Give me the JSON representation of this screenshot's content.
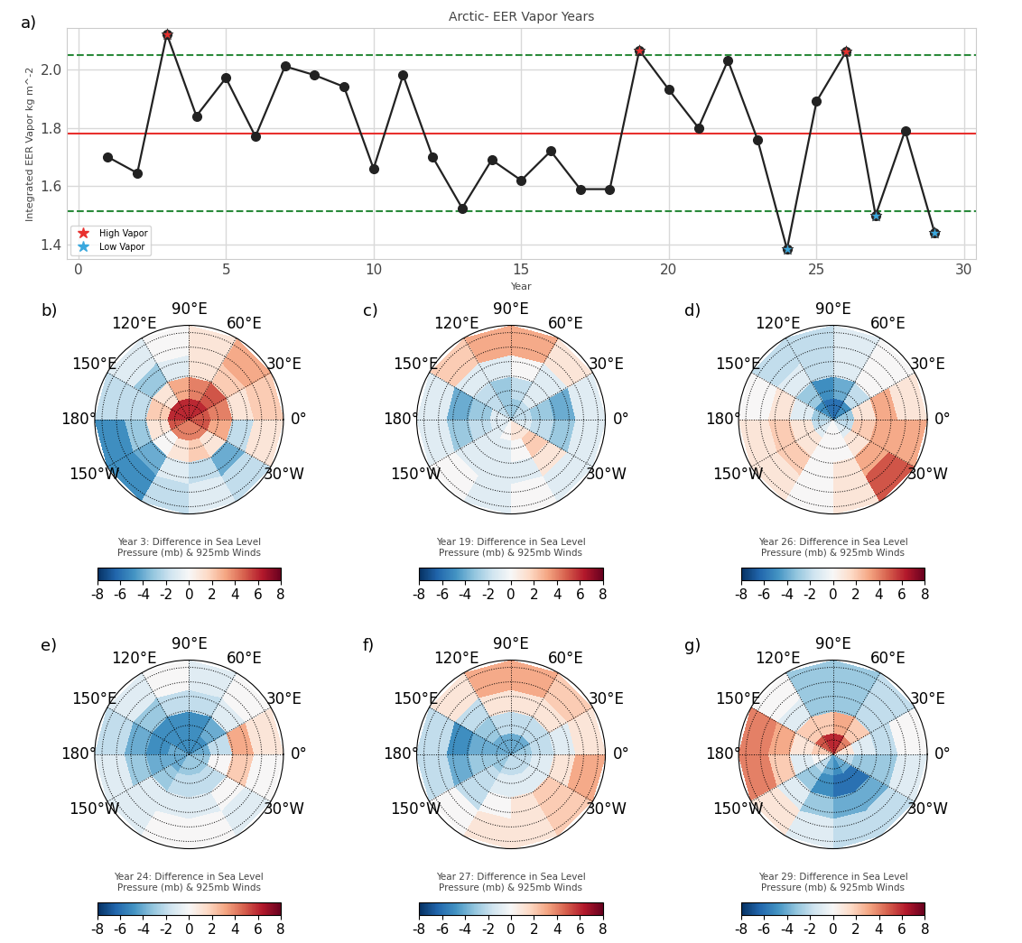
{
  "chart_data": [
    {
      "type": "line",
      "panel_label": "a)",
      "title": "Arctic- EER Vapor Years",
      "x_label": "Year",
      "y_label": "Integrated EER Vapor kg m^-2",
      "x": [
        1,
        2,
        3,
        4,
        5,
        6,
        7,
        8,
        9,
        10,
        11,
        12,
        13,
        14,
        15,
        16,
        17,
        18,
        19,
        20,
        21,
        22,
        23,
        24,
        25,
        26,
        27,
        28,
        29
      ],
      "series": [
        {
          "type": "line",
          "color": "#222222",
          "marker": "circle",
          "line_style": "solid",
          "x": [
            1,
            2,
            3,
            4,
            5,
            6,
            7,
            8,
            9,
            10,
            11,
            12,
            13,
            14,
            15,
            16,
            17,
            18,
            19,
            20,
            21,
            22,
            23,
            24,
            25,
            26,
            27,
            28,
            29
          ],
          "values": [
            1.7,
            1.645,
            2.12,
            1.84,
            1.97,
            1.77,
            2.01,
            1.98,
            1.94,
            1.66,
            1.98,
            1.7,
            1.525,
            1.69,
            1.62,
            1.72,
            1.59,
            1.59,
            2.065,
            1.93,
            1.8,
            2.03,
            1.76,
            1.385,
            1.89,
            2.06,
            1.5,
            1.79,
            1.44
          ]
        },
        {
          "type": "scatter",
          "name": "High Vapor",
          "color": "#e8302e",
          "marker": "star",
          "x": [
            3,
            19,
            26
          ],
          "values": [
            2.12,
            2.065,
            2.06
          ]
        },
        {
          "type": "scatter",
          "name": "Low Vapor",
          "color": "#3aa8de",
          "marker": "star",
          "x": [
            24,
            27,
            29
          ],
          "values": [
            1.385,
            1.5,
            1.44
          ]
        }
      ],
      "reference_lines": [
        {
          "value": 1.78,
          "color": "#e8302e",
          "line_style": "solid"
        },
        {
          "value": 2.05,
          "color": "#2a8a3a",
          "line_style": "dashed"
        },
        {
          "value": 1.515,
          "color": "#2a8a3a",
          "line_style": "dashed"
        }
      ],
      "xlim": [
        -0.4,
        30.4
      ],
      "xticks": [
        0,
        5,
        10,
        15,
        20,
        25,
        30
      ],
      "ylim": [
        1.35,
        2.14
      ],
      "yticks": [
        1.4,
        1.6,
        1.8,
        2.0
      ],
      "grid": true,
      "legend": "lower left"
    },
    {
      "type": "polar_heatmap",
      "panel_label": "b)",
      "title": "Year 3: Difference in Sea Level\nPressure (mb) & 925mb Winds",
      "lon_edges": [
        0,
        30,
        60,
        90,
        120,
        150,
        180,
        210,
        240,
        270,
        300,
        330,
        360
      ],
      "lat_edges": [
        90,
        75,
        60,
        45,
        25
      ],
      "lat_ticks": [
        80,
        70,
        60,
        50,
        40,
        30
      ],
      "xticks": [
        {
          "value": 120,
          "label": "120°E"
        },
        {
          "value": 90,
          "label": "90°E"
        },
        {
          "value": 60,
          "label": "60°E"
        },
        {
          "value": 150,
          "label": "150°E"
        },
        {
          "value": 30,
          "label": "30°E"
        },
        {
          "value": 180,
          "label": "180°"
        },
        {
          "value": 0,
          "label": "0°"
        },
        {
          "value": 210,
          "label": "150°W"
        },
        {
          "value": 330,
          "label": "30°W"
        }
      ],
      "tick_labels": "x",
      "cells": [
        [
          5,
          6,
          6,
          6,
          6,
          6,
          5,
          4,
          4,
          4,
          4,
          5
        ],
        [
          4,
          5,
          4,
          3,
          1,
          2,
          1,
          0,
          1,
          2,
          1,
          3
        ],
        [
          1,
          2,
          1,
          -1,
          -3,
          -2,
          -3,
          -4,
          -1,
          -2,
          -4,
          -2
        ],
        [
          2,
          3,
          1,
          0,
          -1,
          -2,
          -5,
          -5,
          -2,
          -1,
          -2,
          1
        ]
      ],
      "colorbar": {
        "range": [
          -8,
          8
        ],
        "ticks": [
          -8,
          -6,
          -4,
          -2,
          0,
          2,
          4,
          6,
          8
        ]
      }
    },
    {
      "type": "polar_heatmap",
      "panel_label": "c)",
      "title": "Year 19: Difference in Sea Level\nPressure (mb) & 925mb Winds",
      "lon_edges": [
        0,
        30,
        60,
        90,
        120,
        150,
        180,
        210,
        240,
        270,
        300,
        330,
        360
      ],
      "lat_edges": [
        90,
        75,
        60,
        45,
        25
      ],
      "lat_ticks": [
        80,
        70,
        60,
        50,
        40,
        30
      ],
      "xticks": [
        {
          "value": 120,
          "label": "120°E"
        },
        {
          "value": 90,
          "label": "90°E"
        },
        {
          "value": 60,
          "label": "60°E"
        },
        {
          "value": 150,
          "label": "150°E"
        },
        {
          "value": 30,
          "label": "30°E"
        },
        {
          "value": 180,
          "label": "180°"
        },
        {
          "value": 0,
          "label": "0°"
        },
        {
          "value": 210,
          "label": "150°W"
        },
        {
          "value": 330,
          "label": "30°W"
        }
      ],
      "tick_labels": "x",
      "cells": [
        [
          -2,
          -2,
          -3,
          -3,
          -2,
          -1,
          -1,
          -1,
          0,
          1,
          1,
          -1
        ],
        [
          -3,
          -1,
          -2,
          -3,
          -2,
          -3,
          -2,
          -1,
          -1,
          0,
          2,
          -2
        ],
        [
          -4,
          -1,
          0,
          -1,
          -1,
          -4,
          -3,
          -1,
          -1,
          -1,
          1,
          -3
        ],
        [
          -1,
          1,
          3,
          3,
          2,
          -1,
          -1,
          0,
          -1,
          0,
          -1,
          -1
        ]
      ],
      "colorbar": {
        "range": [
          -8,
          8
        ],
        "ticks": [
          -8,
          -6,
          -4,
          -2,
          0,
          2,
          4,
          6,
          8
        ]
      }
    },
    {
      "type": "polar_heatmap",
      "panel_label": "d)",
      "title": "Year 26: Difference in Sea Level\nPressure (mb) & 925mb Winds",
      "lon_edges": [
        0,
        30,
        60,
        90,
        120,
        150,
        180,
        210,
        240,
        270,
        300,
        330,
        360
      ],
      "lat_edges": [
        90,
        75,
        60,
        45,
        25
      ],
      "lat_ticks": [
        80,
        70,
        60,
        50,
        40,
        30
      ],
      "xticks": [
        {
          "value": 120,
          "label": "120°E"
        },
        {
          "value": 90,
          "label": "90°E"
        },
        {
          "value": 60,
          "label": "60°E"
        },
        {
          "value": 150,
          "label": "150°E"
        },
        {
          "value": 30,
          "label": "30°E"
        },
        {
          "value": 180,
          "label": "180°"
        },
        {
          "value": 0,
          "label": "0°"
        },
        {
          "value": 210,
          "label": "150°W"
        },
        {
          "value": 330,
          "label": "30°W"
        }
      ],
      "tick_labels": "x",
      "cells": [
        [
          -3,
          -5,
          -6,
          -6,
          -5,
          -3,
          -2,
          -1,
          0,
          0,
          -1,
          -2
        ],
        [
          1,
          -2,
          -4,
          -5,
          -3,
          -1,
          1,
          1,
          0,
          0,
          1,
          2
        ],
        [
          3,
          0,
          -1,
          -2,
          -1,
          1,
          2,
          2,
          0,
          1,
          3,
          3
        ],
        [
          1,
          0,
          -1,
          -2,
          -2,
          0,
          1,
          1,
          0,
          1,
          5,
          3
        ]
      ],
      "colorbar": {
        "range": [
          -8,
          8
        ],
        "ticks": [
          -8,
          -6,
          -4,
          -2,
          0,
          2,
          4,
          6,
          8
        ]
      }
    },
    {
      "type": "polar_heatmap",
      "panel_label": "e)",
      "title": "Year 24: Difference in Sea Level\nPressure (mb) & 925mb Winds",
      "lon_edges": [
        0,
        30,
        60,
        90,
        120,
        150,
        180,
        210,
        240,
        270,
        300,
        330,
        360
      ],
      "lat_edges": [
        90,
        75,
        60,
        45,
        25
      ],
      "lat_ticks": [
        80,
        70,
        60,
        50,
        40,
        30
      ],
      "xticks": [
        {
          "value": 120,
          "label": "120°E"
        },
        {
          "value": 90,
          "label": "90°E"
        },
        {
          "value": 60,
          "label": "60°E"
        },
        {
          "value": 150,
          "label": "150°E"
        },
        {
          "value": 30,
          "label": "30°E"
        },
        {
          "value": 180,
          "label": "180°"
        },
        {
          "value": 0,
          "label": "0°"
        },
        {
          "value": 210,
          "label": "150°W"
        },
        {
          "value": 330,
          "label": "30°W"
        }
      ],
      "tick_labels": "x",
      "cells": [
        [
          -4,
          -5,
          -5,
          -5,
          -5,
          -4,
          -4,
          -4,
          -3,
          -3,
          -3,
          -3
        ],
        [
          -2,
          -4,
          -5,
          -5,
          -5,
          -5,
          -4,
          -3,
          -2,
          -2,
          -2,
          0
        ],
        [
          3,
          -1,
          -2,
          -2,
          -3,
          -4,
          -3,
          -1,
          -1,
          -1,
          0,
          2
        ],
        [
          1,
          0,
          -1,
          0,
          -1,
          -2,
          -1,
          -1,
          0,
          0,
          -1,
          0
        ]
      ],
      "colorbar": {
        "range": [
          -8,
          8
        ],
        "ticks": [
          -8,
          -6,
          -4,
          -2,
          0,
          2,
          4,
          6,
          8
        ]
      }
    },
    {
      "type": "polar_heatmap",
      "panel_label": "f)",
      "title": "Year 27: Difference in Sea Level\nPressure (mb) & 925mb Winds",
      "lon_edges": [
        0,
        30,
        60,
        90,
        120,
        150,
        180,
        210,
        240,
        270,
        300,
        330,
        360
      ],
      "lat_edges": [
        90,
        75,
        60,
        45,
        25
      ],
      "lat_ticks": [
        80,
        70,
        60,
        50,
        40,
        30
      ],
      "xticks": [
        {
          "value": 120,
          "label": "120°E"
        },
        {
          "value": 90,
          "label": "90°E"
        },
        {
          "value": 60,
          "label": "60°E"
        },
        {
          "value": 150,
          "label": "150°E"
        },
        {
          "value": 30,
          "label": "30°E"
        },
        {
          "value": 180,
          "label": "180°"
        },
        {
          "value": 0,
          "label": "0°"
        },
        {
          "value": 210,
          "label": "150°W"
        },
        {
          "value": 330,
          "label": "30°W"
        }
      ],
      "tick_labels": "x",
      "cells": [
        [
          -3,
          -4,
          -4,
          -4,
          -4,
          -4,
          -3,
          -3,
          -2,
          -2,
          -2,
          -2
        ],
        [
          -2,
          -2,
          -2,
          -2,
          -3,
          -4,
          -3,
          -2,
          -1,
          -1,
          -1,
          -1
        ],
        [
          -1,
          1,
          1,
          1,
          -2,
          -5,
          -4,
          -2,
          0,
          1,
          2,
          1
        ],
        [
          1,
          2,
          3,
          3,
          1,
          -2,
          -2,
          0,
          1,
          1,
          2,
          3
        ]
      ],
      "colorbar": {
        "range": [
          -8,
          8
        ],
        "ticks": [
          -8,
          -6,
          -4,
          -2,
          0,
          2,
          4,
          6,
          8
        ]
      }
    },
    {
      "type": "polar_heatmap",
      "panel_label": "g)",
      "title": "Year 29: Difference in Sea Level\nPressure (mb) & 925mb Winds",
      "lon_edges": [
        0,
        30,
        60,
        90,
        120,
        150,
        180,
        210,
        240,
        270,
        300,
        330,
        360
      ],
      "lat_edges": [
        90,
        75,
        60,
        45,
        25
      ],
      "lat_ticks": [
        80,
        70,
        60,
        50,
        40,
        30
      ],
      "xticks": [
        {
          "value": 120,
          "label": "120°E"
        },
        {
          "value": 90,
          "label": "90°E"
        },
        {
          "value": 60,
          "label": "60°E"
        },
        {
          "value": 150,
          "label": "150°E"
        },
        {
          "value": 30,
          "label": "30°E"
        },
        {
          "value": 180,
          "label": "180°"
        },
        {
          "value": 0,
          "label": "0°"
        },
        {
          "value": 210,
          "label": "150°W"
        },
        {
          "value": 330,
          "label": "30°W"
        }
      ],
      "tick_labels": "x",
      "cells": [
        [
          1,
          4,
          6,
          6,
          5,
          2,
          0,
          -2,
          -4,
          -5,
          -4,
          -2
        ],
        [
          -1,
          2,
          3,
          2,
          2,
          1,
          -1,
          -3,
          -5,
          -6,
          -6,
          -3
        ],
        [
          -2,
          -2,
          -3,
          -3,
          -1,
          3,
          2,
          -1,
          -3,
          -4,
          -4,
          -3
        ],
        [
          0,
          -2,
          -3,
          -3,
          0,
          4,
          4,
          1,
          -1,
          -2,
          -2,
          -1
        ]
      ],
      "colorbar": {
        "range": [
          -8,
          8
        ],
        "ticks": [
          -8,
          -6,
          -4,
          -2,
          0,
          2,
          4,
          6,
          8
        ]
      }
    }
  ]
}
